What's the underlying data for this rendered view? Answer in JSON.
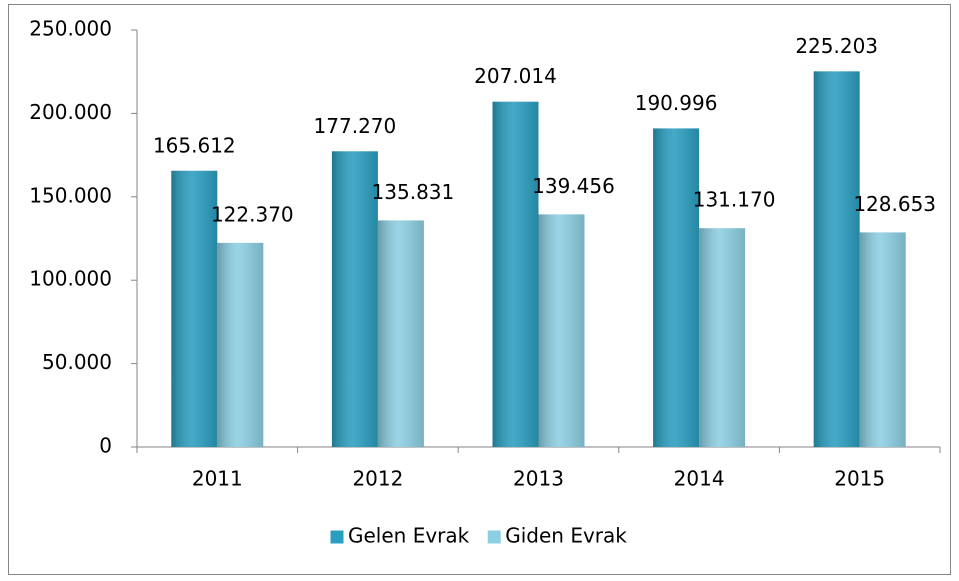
{
  "chart_data": {
    "type": "bar",
    "categories": [
      "2011",
      "2012",
      "2013",
      "2014",
      "2015"
    ],
    "series": [
      {
        "name": "Gelen Evrak",
        "color": "#2a9ec0",
        "values": [
          165612,
          177270,
          207014,
          190996,
          225203
        ],
        "value_labels": [
          "165.612",
          "177.270",
          "207.014",
          "190.996",
          "225.203"
        ]
      },
      {
        "name": "Giden Evrak",
        "color": "#8ccfe2",
        "values": [
          122370,
          135831,
          139456,
          131170,
          128653
        ],
        "value_labels": [
          "122.370",
          "135.831",
          "139.456",
          "131.170",
          "128.653"
        ]
      }
    ],
    "ylim": [
      0,
      250000
    ],
    "yticks": [
      0,
      {
        "value": 50000,
        "label": "50.000"
      },
      {
        "value": 100000,
        "label": "100.000"
      },
      {
        "value": 150000,
        "label": "150.000"
      },
      {
        "value": 200000,
        "label": "200.000"
      },
      {
        "value": 250000,
        "label": "250.000"
      }
    ],
    "grid": false,
    "legend": "bottom"
  }
}
